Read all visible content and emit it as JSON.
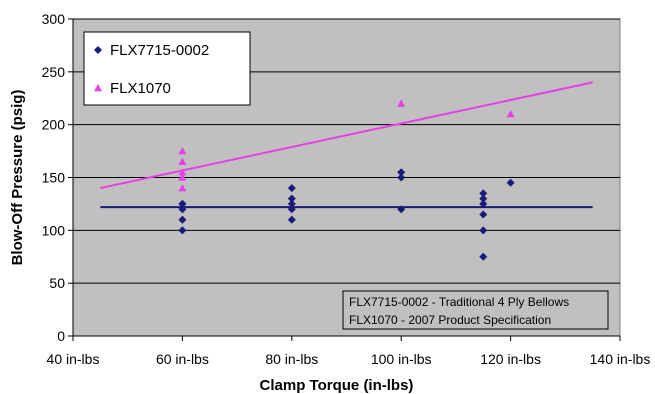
{
  "chart_data": {
    "type": "scatter",
    "xlabel": "Clamp Torque (in-lbs)",
    "ylabel": "Blow-Off Pressure (psig)",
    "xlim": [
      40,
      140
    ],
    "ylim": [
      0,
      300
    ],
    "x_ticks": [
      {
        "value": 40,
        "label": "40 in-lbs"
      },
      {
        "value": 60,
        "label": "60 in-lbs"
      },
      {
        "value": 80,
        "label": "80 in-lbs"
      },
      {
        "value": 100,
        "label": "100 in-lbs"
      },
      {
        "value": 120,
        "label": "120 in-lbs"
      },
      {
        "value": 140,
        "label": "140 in-lbs"
      }
    ],
    "y_ticks": [
      {
        "value": 0,
        "label": "0"
      },
      {
        "value": 50,
        "label": "50"
      },
      {
        "value": 100,
        "label": "100"
      },
      {
        "value": 150,
        "label": "150"
      },
      {
        "value": 200,
        "label": "200"
      },
      {
        "value": 250,
        "label": "250"
      },
      {
        "value": 300,
        "label": "300"
      }
    ],
    "grid": "horizontal",
    "legend_position": "top-left",
    "series": [
      {
        "name": "FLX7715-0002",
        "marker": "diamond",
        "color": "#1a1a7a",
        "points": [
          [
            60,
            100
          ],
          [
            60,
            110
          ],
          [
            60,
            120
          ],
          [
            60,
            125
          ],
          [
            60,
            125
          ],
          [
            80,
            110
          ],
          [
            80,
            120
          ],
          [
            80,
            125
          ],
          [
            80,
            130
          ],
          [
            80,
            140
          ],
          [
            100,
            120
          ],
          [
            100,
            150
          ],
          [
            100,
            155
          ],
          [
            115,
            75
          ],
          [
            115,
            100
          ],
          [
            115,
            115
          ],
          [
            115,
            125
          ],
          [
            115,
            130
          ],
          [
            115,
            135
          ],
          [
            120,
            145
          ]
        ],
        "trendline": [
          [
            45,
            122
          ],
          [
            135,
            122
          ]
        ]
      },
      {
        "name": "FLX1070",
        "marker": "triangle",
        "color": "#e63fe6",
        "points": [
          [
            60,
            140
          ],
          [
            60,
            150
          ],
          [
            60,
            155
          ],
          [
            60,
            165
          ],
          [
            60,
            175
          ],
          [
            100,
            220
          ],
          [
            120,
            210
          ]
        ],
        "trendline": [
          [
            45,
            140
          ],
          [
            135,
            240
          ]
        ]
      }
    ],
    "annotations": [
      "FLX7715-0002 - Traditional 4 Ply Bellows",
      "FLX1070 - 2007 Product Specification"
    ]
  }
}
